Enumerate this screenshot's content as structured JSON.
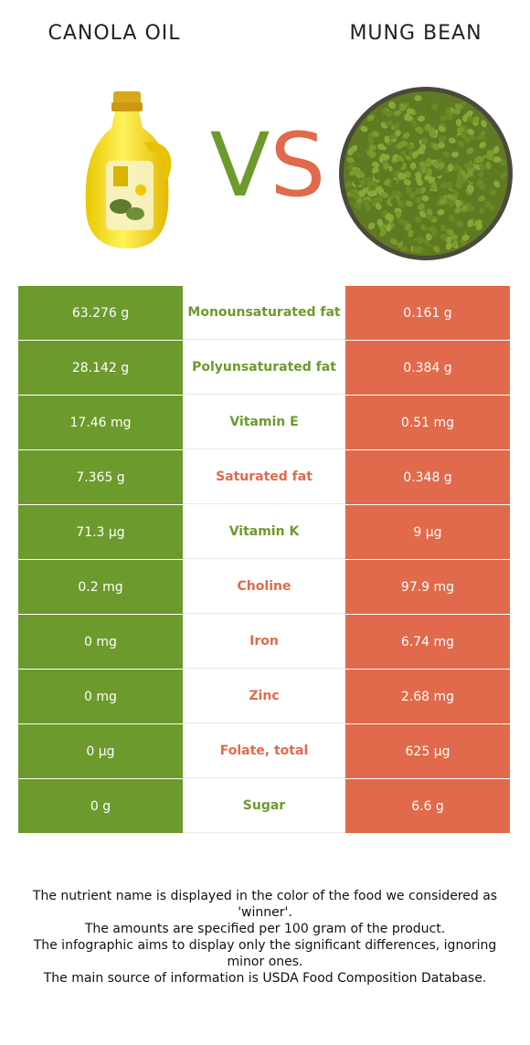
{
  "header": {
    "left_title": "CANOLA OIL",
    "right_title": "MUNG BEAN",
    "vs_v": "V",
    "vs_s": "S"
  },
  "colors": {
    "winner_left": "#6d9a2c",
    "winner_right": "#e06a4b"
  },
  "rows": [
    {
      "left": "63.276 g",
      "nutrient": "Monounsaturated fat",
      "right": "0.161 g",
      "winner": "left"
    },
    {
      "left": "28.142 g",
      "nutrient": "Polyunsaturated fat",
      "right": "0.384 g",
      "winner": "left"
    },
    {
      "left": "17.46 mg",
      "nutrient": "Vitamin E",
      "right": "0.51 mg",
      "winner": "left"
    },
    {
      "left": "7.365 g",
      "nutrient": "Saturated fat",
      "right": "0.348 g",
      "winner": "right"
    },
    {
      "left": "71.3 µg",
      "nutrient": "Vitamin K",
      "right": "9 µg",
      "winner": "left"
    },
    {
      "left": "0.2 mg",
      "nutrient": "Choline",
      "right": "97.9 mg",
      "winner": "right"
    },
    {
      "left": "0 mg",
      "nutrient": "Iron",
      "right": "6.74 mg",
      "winner": "right"
    },
    {
      "left": "0 mg",
      "nutrient": "Zinc",
      "right": "2.68 mg",
      "winner": "right"
    },
    {
      "left": "0 µg",
      "nutrient": "Folate, total",
      "right": "625 µg",
      "winner": "right"
    },
    {
      "left": "0 g",
      "nutrient": "Sugar",
      "right": "6.6 g",
      "winner": "left"
    }
  ],
  "footer": {
    "line1": "The nutrient name is displayed in the color of the food we considered as 'winner'.",
    "line2": "The amounts are specified per 100 gram of the product.",
    "line3": "The infographic aims to display only the significant differences, ignoring minor ones.",
    "line4": "The main source of information is USDA Food Composition Database."
  }
}
